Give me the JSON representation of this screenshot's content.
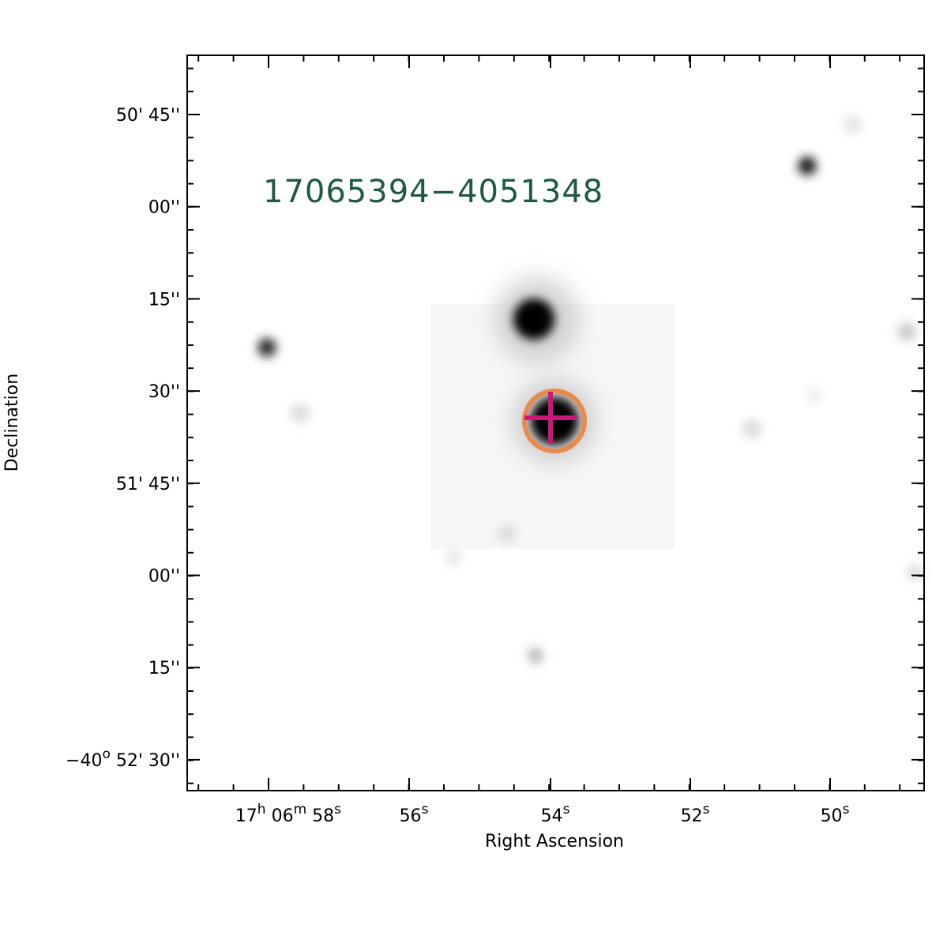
{
  "plot": {
    "source_label": "17065394−4051348",
    "x_axis": {
      "label": "Right Ascension",
      "ticks": [
        [
          {
            "base": "17",
            "sup": "h"
          },
          {
            "base": " 06",
            "sup": "m"
          },
          {
            "base": " 58",
            "sup": "s"
          }
        ],
        [
          {
            "base": "56",
            "sup": "s"
          }
        ],
        [
          {
            "base": "54",
            "sup": "s"
          }
        ],
        [
          {
            "base": "52",
            "sup": "s"
          }
        ],
        [
          {
            "base": "50",
            "sup": "s"
          }
        ]
      ]
    },
    "y_axis": {
      "label": "Declination",
      "ticks": [
        [
          {
            "base": "50' 45''"
          }
        ],
        [
          {
            "base": "00''"
          }
        ],
        [
          {
            "base": "15''"
          }
        ],
        [
          {
            "base": "30''"
          }
        ],
        [
          {
            "base": "51' 45''"
          }
        ],
        [
          {
            "base": "00''"
          }
        ],
        [
          {
            "base": "15''"
          }
        ],
        [
          {
            "base": "−40",
            "sup": "o"
          },
          {
            "base": " 52' 30''"
          }
        ]
      ]
    }
  }
}
